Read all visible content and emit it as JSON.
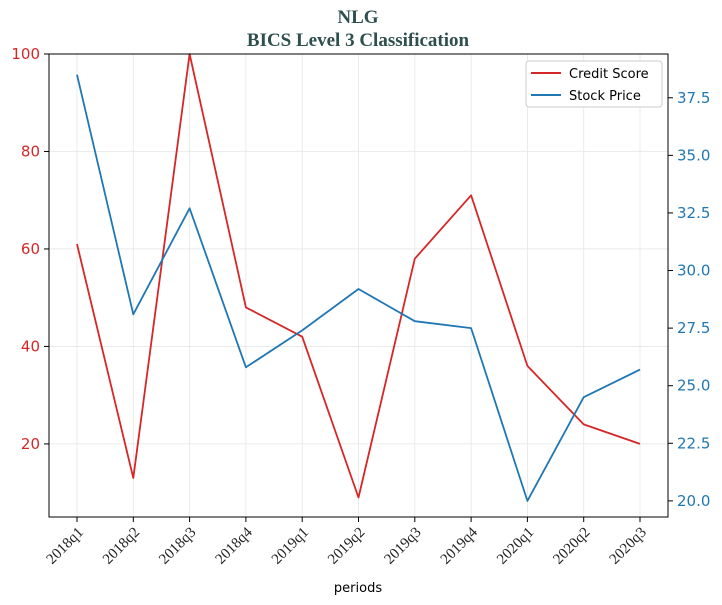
{
  "chart_data": {
    "type": "line",
    "title": "NLG",
    "subtitle": "BICS Level 3 Classification",
    "xlabel": "periods",
    "categories": [
      "2018q1",
      "2018q2",
      "2018q3",
      "2018q4",
      "2019q1",
      "2019q2",
      "2019q3",
      "2019q4",
      "2020q1",
      "2020q2",
      "2020q3"
    ],
    "left_axis": {
      "ylim": [
        5,
        100
      ],
      "ticks": [
        20,
        40,
        60,
        80,
        100
      ],
      "color": "#d62728"
    },
    "right_axis": {
      "ylim": [
        19.3,
        39.4
      ],
      "ticks": [
        "20.0",
        "22.5",
        "25.0",
        "27.5",
        "30.0",
        "32.5",
        "35.0",
        "37.5"
      ],
      "color": "#1f77b4"
    },
    "series": [
      {
        "name": "Credit Score",
        "axis": "left",
        "color": "#d62728",
        "values": [
          61,
          13,
          100,
          48,
          42,
          9,
          58,
          71,
          36,
          24,
          20
        ]
      },
      {
        "name": "Stock Price",
        "axis": "right",
        "color": "#1f77b4",
        "values": [
          38.5,
          28.1,
          32.7,
          25.8,
          27.4,
          29.2,
          27.8,
          27.5,
          20.0,
          24.5,
          25.7
        ]
      }
    ],
    "grid": true,
    "legend": "top-right"
  }
}
